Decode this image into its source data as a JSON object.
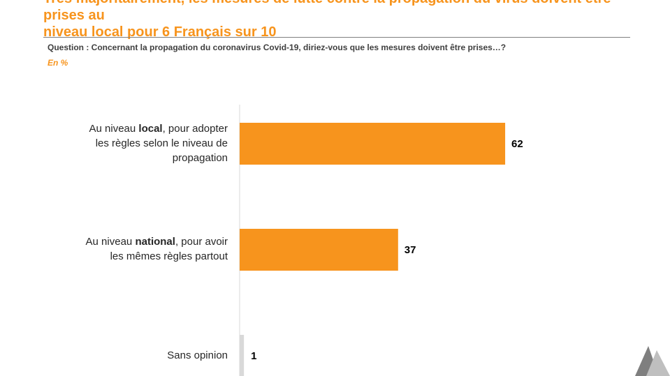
{
  "header": {
    "title_line1": "Très majoritairement, les mesures de lutte contre la propagation du virus doivent être prises au",
    "title_line2": "niveau local pour 6 Français sur 10",
    "question": "Question : Concernant la propagation du coronavirus Covid-19, diriez-vous que les mesures doivent être prises…?",
    "unit": "En %"
  },
  "colors": {
    "accent": "#F7941D",
    "bar": "#F7941D",
    "baseline": "#D9D9D9",
    "label": "#262626",
    "logo_dark": "#7F7F7F",
    "logo_light": "#BFBFBF"
  },
  "chart_data": {
    "type": "bar",
    "orientation": "horizontal",
    "title": "",
    "xlabel": "",
    "ylabel": "",
    "xlim": [
      0,
      100
    ],
    "categories": [
      [
        "Au niveau ",
        "local",
        ", pour adopter",
        "les règles selon le niveau de",
        "propagation"
      ],
      [
        "Au niveau ",
        "national",
        ", pour avoir",
        "les mêmes règles partout"
      ],
      [
        "Sans opinion"
      ]
    ],
    "values": [
      62,
      37,
      1
    ]
  }
}
